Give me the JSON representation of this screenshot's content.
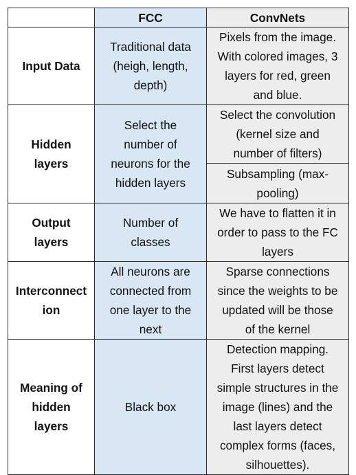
{
  "table": {
    "headers": {
      "blank": "",
      "fcc": "FCC",
      "convnets": "ConvNets"
    },
    "rows": [
      {
        "label": "Input Data",
        "fcc": "Traditional data\n(heigh, length,\ndepth)",
        "convnets": "Pixels from the image.\nWith colored images, 3\nlayers for red, green\nand blue."
      },
      {
        "label": "Hidden\nlayers",
        "fcc": "Select the\nnumber of\nneurons for the\nhidden layers",
        "convnets": [
          "Select the convolution\n(kernel size and\nnumber of filters)",
          "Subsampling (max-\npooling)"
        ]
      },
      {
        "label": "Output\nlayers",
        "fcc": "Number of\nclasses",
        "convnets": "We have to flatten it in\norder to pass to the FC\nlayers"
      },
      {
        "label": "Interconnect\nion",
        "fcc": "All neurons are\nconnected from\none layer to the\nnext",
        "convnets": "Sparse connections\nsince the weights to be\nupdated will be those\nof the kernel"
      },
      {
        "label": "Meaning of\nhidden\nlayers",
        "fcc": "Black box",
        "convnets": "Detection mapping.\nFirst layers detect\nsimple structures in the\nimage (lines) and the\nlast layers detect\ncomplex forms (faces,\nsilhouettes)."
      }
    ]
  },
  "colors": {
    "fcc_column": "#d9e6f3",
    "convnets_column": "#ededed",
    "border": "#2b2b2b"
  }
}
